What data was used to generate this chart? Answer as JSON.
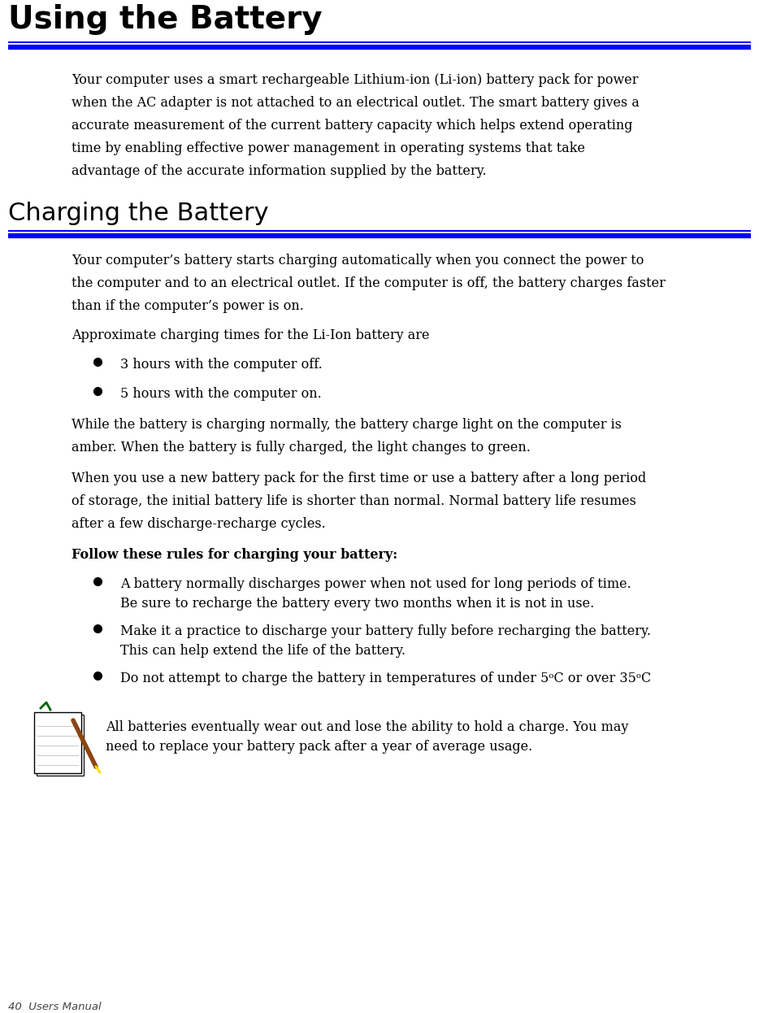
{
  "page_title": "Using the Battery",
  "section2_title": "Charging the Battery",
  "footer": "40  Users Manual",
  "bg_color": "#ffffff",
  "title_color": "#000000",
  "line_color": "#0000ff",
  "body_color": "#000000",
  "para1_lines": [
    "Your computer uses a smart rechargeable Lithium-ion (Li-ion) battery pack for power",
    "when the AC adapter is not attached to an electrical outlet. The smart battery gives a",
    "accurate measurement of the current battery capacity which helps extend operating",
    "time by enabling effective power management in operating systems that take",
    "advantage of the accurate information supplied by the battery."
  ],
  "para2_lines": [
    "Your computer’s battery starts charging automatically when you connect the power to",
    "the computer and to an electrical outlet. If the computer is off, the battery charges faster",
    "than if the computer’s power is on."
  ],
  "para3": "Approximate charging times for the Li-Ion battery are",
  "bullet1": "3 hours with the computer off.",
  "bullet2": "5 hours with the computer on.",
  "para4_lines": [
    "While the battery is charging normally, the battery charge light on the computer is",
    "amber. When the battery is fully charged, the light changes to green."
  ],
  "para5_lines": [
    "When you use a new battery pack for the first time or use a battery after a long period",
    "of storage, the initial battery life is shorter than normal. Normal battery life resumes",
    "after a few discharge-recharge cycles."
  ],
  "bold_heading": "Follow these rules for charging your battery:",
  "bullet3_lines": [
    "A battery normally discharges power when not used for long periods of time.",
    "Be sure to recharge the battery every two months when it is not in use."
  ],
  "bullet4_lines": [
    "Make it a practice to discharge your battery fully before recharging the battery.",
    "This can help extend the life of the battery."
  ],
  "bullet5": "Do not attempt to charge the battery in temperatures of under 5ᵒC or over 35ᵒC",
  "note_text_lines": [
    "All batteries eventually wear out and lose the ability to hold a charge. You may",
    "need to replace your battery pack after a year of average usage."
  ]
}
